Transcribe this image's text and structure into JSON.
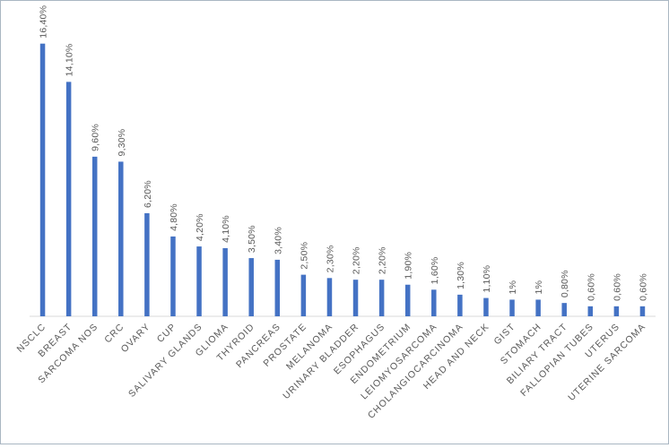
{
  "chart_data": {
    "type": "bar",
    "categories": [
      "NSCLC",
      "BREAST",
      "SARCOMA NOS",
      "CRC",
      "OVARY",
      "CUP",
      "SALIVARY GLANDS",
      "GLIOMA",
      "THYROID",
      "PANCREAS",
      "PROSTATE",
      "MELANOMA",
      "URINARY BLADDER",
      "ESOPHAGUS",
      "ENDOMETRIUM",
      "LEIOMYOSARCOMA",
      "CHOLANGIOCARCINOMA",
      "HEAD AND NECK",
      "GIST",
      "STOMACH",
      "BILIARY TRACT",
      "FALLOPIAN TUBES",
      "UTERUS",
      "UTERINE SARCOMA"
    ],
    "values": [
      16.4,
      14.1,
      9.6,
      9.3,
      6.2,
      4.8,
      4.2,
      4.1,
      3.5,
      3.4,
      2.5,
      2.3,
      2.2,
      2.2,
      1.9,
      1.6,
      1.3,
      1.1,
      1.0,
      1.0,
      0.8,
      0.6,
      0.6,
      0.6
    ],
    "data_labels": [
      "16,40%",
      "14,10%",
      "9,60%",
      "9,30%",
      "6,20%",
      "4,80%",
      "4,20%",
      "4,10%",
      "3,50%",
      "3,40%",
      "2,50%",
      "2,30%",
      "2,20%",
      "2,20%",
      "1,90%",
      "1,60%",
      "1,30%",
      "1,10%",
      "1%",
      "1%",
      "0,80%",
      "0,60%",
      "0,60%",
      "0,60%"
    ],
    "title": "",
    "xlabel": "",
    "ylabel": "",
    "ylim": [
      0,
      18
    ],
    "grid": false,
    "legend": "none",
    "bar_color": "#4472c4",
    "axis_color": "#d9d9d9"
  }
}
